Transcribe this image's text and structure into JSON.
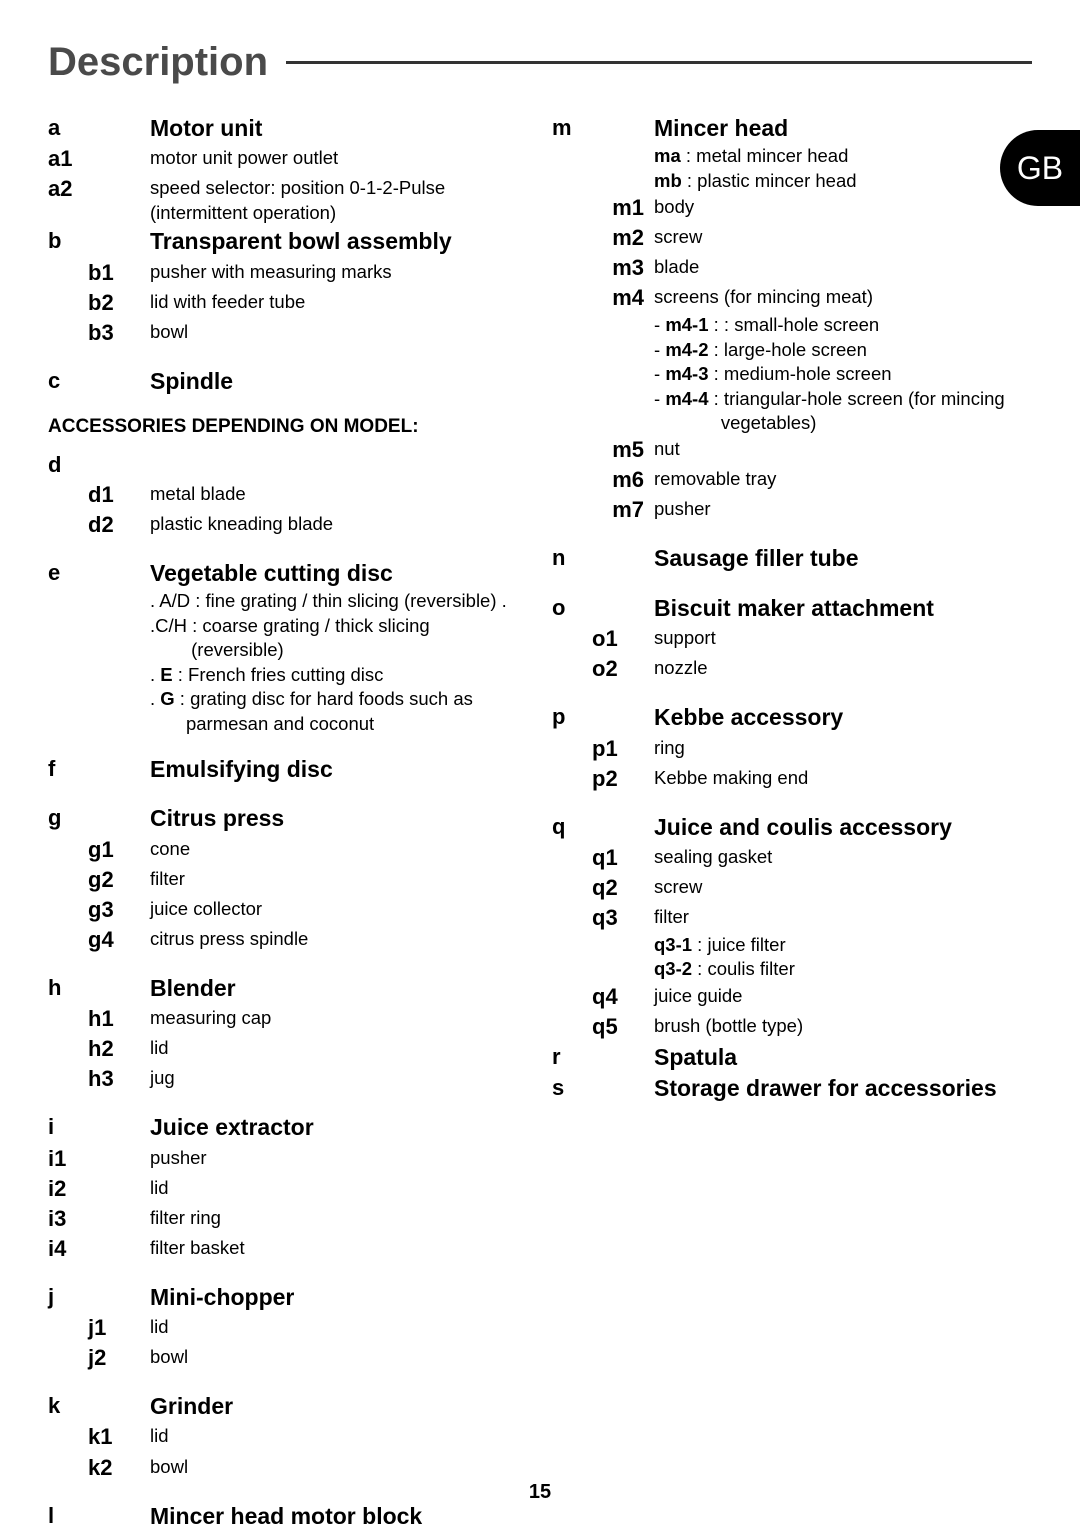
{
  "page": {
    "title": "Description",
    "number": "15",
    "badge": "GB"
  },
  "accessories_heading": "ACCESSORIES DEPENDING ON MODEL:",
  "left": {
    "a": {
      "code": "a",
      "label": "Motor unit",
      "subs": [
        {
          "code": "a1",
          "text": "motor unit power outlet"
        },
        {
          "code": "a2",
          "text": "speed selector: position 0-1-2-Pulse (intermittent operation)"
        }
      ]
    },
    "b": {
      "code": "b",
      "label": "Transparent bowl assembly",
      "subs": [
        {
          "code": "b1",
          "text": "pusher with measuring marks"
        },
        {
          "code": "b2",
          "text": "lid with feeder tube"
        },
        {
          "code": "b3",
          "text": "bowl"
        }
      ]
    },
    "c": {
      "code": "c",
      "label": "Spindle"
    },
    "d": {
      "code": "d",
      "subs": [
        {
          "code": "d1",
          "text": "metal blade"
        },
        {
          "code": "d2",
          "text": "plastic kneading blade"
        }
      ]
    },
    "e": {
      "code": "e",
      "label": "Vegetable cutting disc",
      "notes": [
        ". A/D : fine grating / thin slicing (reversible) .",
        ".C/H : coarse grating / thick slicing",
        "        (reversible)"
      ],
      "enote_prefix": ". ",
      "enote_bold": "E",
      "enote_suffix": " : French fries cutting disc",
      "gnote_prefix": ". ",
      "gnote_bold": "G",
      "gnote_suffix": " : grating disc for hard foods such as",
      "gnote_line2": "       parmesan and coconut"
    },
    "f": {
      "code": "f",
      "label": "Emulsifying disc"
    },
    "g": {
      "code": "g",
      "label": "Citrus press",
      "subs": [
        {
          "code": "g1",
          "text": "cone"
        },
        {
          "code": "g2",
          "text": "filter"
        },
        {
          "code": "g3",
          "text": "juice collector"
        },
        {
          "code": "g4",
          "text": "citrus press spindle"
        }
      ]
    },
    "h": {
      "code": "h",
      "label": "Blender",
      "subs": [
        {
          "code": "h1",
          "text": "measuring cap"
        },
        {
          "code": "h2",
          "text": "lid"
        },
        {
          "code": "h3",
          "text": "jug"
        }
      ]
    },
    "i": {
      "code": "i",
      "label": "Juice extractor",
      "subs": [
        {
          "code": "i1",
          "text": "pusher"
        },
        {
          "code": "i2",
          "text": "lid"
        },
        {
          "code": "i3",
          "text": "filter ring"
        },
        {
          "code": "i4",
          "text": "filter basket"
        }
      ]
    },
    "j": {
      "code": "j",
      "label": "Mini-chopper",
      "subs": [
        {
          "code": "j1",
          "text": "lid"
        },
        {
          "code": "j2",
          "text": "bowl"
        }
      ]
    },
    "k": {
      "code": "k",
      "label": "Grinder",
      "subs": [
        {
          "code": "k1",
          "text": "lid"
        },
        {
          "code": "k2",
          "text": "bowl"
        }
      ]
    },
    "l": {
      "code": "l",
      "label": "Mincer head motor block"
    }
  },
  "right": {
    "m": {
      "code": "m",
      "label": "Mincer head",
      "ma_bold": "ma",
      "ma_text": " : metal mincer head",
      "mb_bold": "mb",
      "mb_text": " : plastic mincer head",
      "subs": [
        {
          "code": "m1",
          "text": "body"
        },
        {
          "code": "m2",
          "text": "screw"
        },
        {
          "code": "m3",
          "text": "blade"
        },
        {
          "code": "m4",
          "text": "screens (for mincing meat)"
        }
      ],
      "m4_items": [
        {
          "b": "m4-1",
          "t": " : : small-hole screen"
        },
        {
          "b": "m4-2",
          "t": " : large-hole screen"
        },
        {
          "b": "m4-3",
          "t": " : medium-hole screen"
        },
        {
          "b": "m4-4",
          "t": " : triangular-hole screen (for mincing"
        }
      ],
      "m4_last_indent": "             vegetables)",
      "subs2": [
        {
          "code": "m5",
          "text": "nut"
        },
        {
          "code": "m6",
          "text": "removable tray"
        },
        {
          "code": "m7",
          "text": "pusher"
        }
      ]
    },
    "n": {
      "code": "n",
      "label": "Sausage filler tube"
    },
    "o": {
      "code": "o",
      "label": "Biscuit maker attachment",
      "subs": [
        {
          "code": "o1",
          "text": "support"
        },
        {
          "code": "o2",
          "text": "nozzle"
        }
      ]
    },
    "p": {
      "code": "p",
      "label": "Kebbe accessory",
      "subs": [
        {
          "code": "p1",
          "text": "ring"
        },
        {
          "code": "p2",
          "text": "Kebbe making end"
        }
      ]
    },
    "q": {
      "code": "q",
      "label": "Juice and coulis accessory",
      "subs": [
        {
          "code": "q1",
          "text": "sealing gasket"
        },
        {
          "code": "q2",
          "text": "screw"
        },
        {
          "code": "q3",
          "text": "filter"
        }
      ],
      "q31_bold": "q3-1",
      "q31_text": " : juice filter",
      "q32_bold": "q3-2",
      "q32_text": " : coulis filter",
      "subs2": [
        {
          "code": "q4",
          "text": "juice guide"
        },
        {
          "code": "q5",
          "text": "brush (bottle type)"
        }
      ]
    },
    "r": {
      "code": "r",
      "label": "Spatula"
    },
    "s": {
      "code": "s",
      "label": "Storage drawer for accessories"
    }
  }
}
